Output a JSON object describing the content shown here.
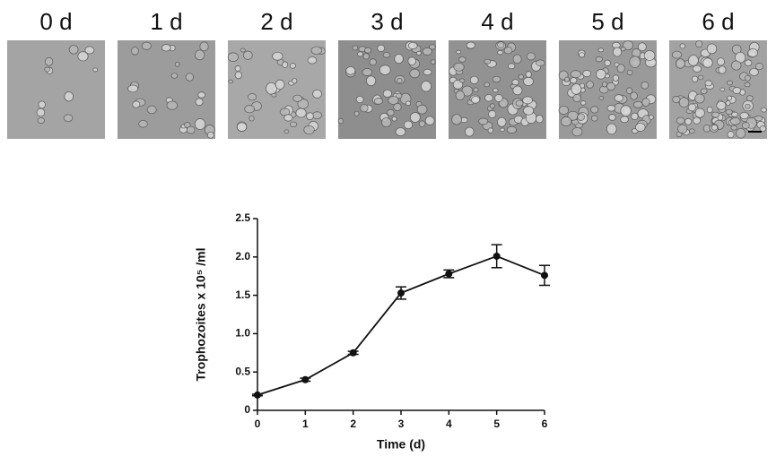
{
  "panels": [
    "0 d",
    "1 d",
    "2 d",
    "3 d",
    "4 d",
    "5 d",
    "6 d"
  ],
  "chart_data": {
    "type": "line",
    "x": [
      0,
      1,
      2,
      3,
      4,
      5,
      6
    ],
    "values": [
      0.2,
      0.4,
      0.75,
      1.53,
      1.78,
      2.01,
      1.76
    ],
    "errors": [
      0.01,
      0.02,
      0.02,
      0.08,
      0.05,
      0.15,
      0.13
    ],
    "color": "#111111",
    "xlim": [
      0,
      6
    ],
    "xticks": [
      0,
      1,
      2,
      3,
      4,
      5,
      6
    ],
    "ylim": [
      0,
      2.5
    ],
    "yticks": [
      0,
      0.5,
      {
        "value": 1,
        "label": "1.0"
      },
      1.5,
      {
        "value": 2,
        "label": "2.0"
      },
      2.5
    ],
    "xlabel": "Time (d)",
    "ylabel": "Trophozoites x 10⁵ /ml"
  }
}
